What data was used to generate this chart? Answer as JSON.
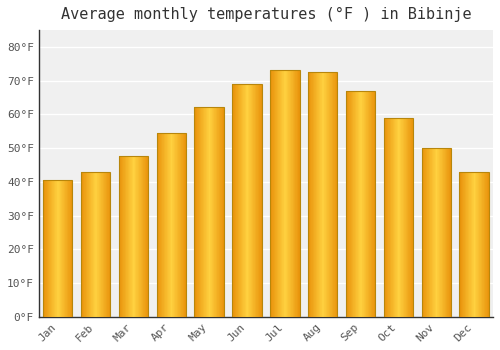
{
  "title": "Average monthly temperatures (°F ) in Bibinje",
  "months": [
    "Jan",
    "Feb",
    "Mar",
    "Apr",
    "May",
    "Jun",
    "Jul",
    "Aug",
    "Sep",
    "Oct",
    "Nov",
    "Dec"
  ],
  "values": [
    40.5,
    43.0,
    47.7,
    54.5,
    62.2,
    69.0,
    73.2,
    72.5,
    67.0,
    59.0,
    50.0,
    43.0
  ],
  "bar_color_center": "#FFB733",
  "bar_color_edge": "#E8920A",
  "bar_edge_color": "#B8860B",
  "ylim": [
    0,
    85
  ],
  "yticks": [
    0,
    10,
    20,
    30,
    40,
    50,
    60,
    70,
    80
  ],
  "ytick_labels": [
    "0°F",
    "10°F",
    "20°F",
    "30°F",
    "40°F",
    "50°F",
    "60°F",
    "70°F",
    "80°F"
  ],
  "background_color": "#ffffff",
  "plot_bg_color": "#f0f0f0",
  "grid_color": "#ffffff",
  "spine_color": "#333333",
  "title_fontsize": 11,
  "tick_fontsize": 8,
  "bar_width": 0.78
}
